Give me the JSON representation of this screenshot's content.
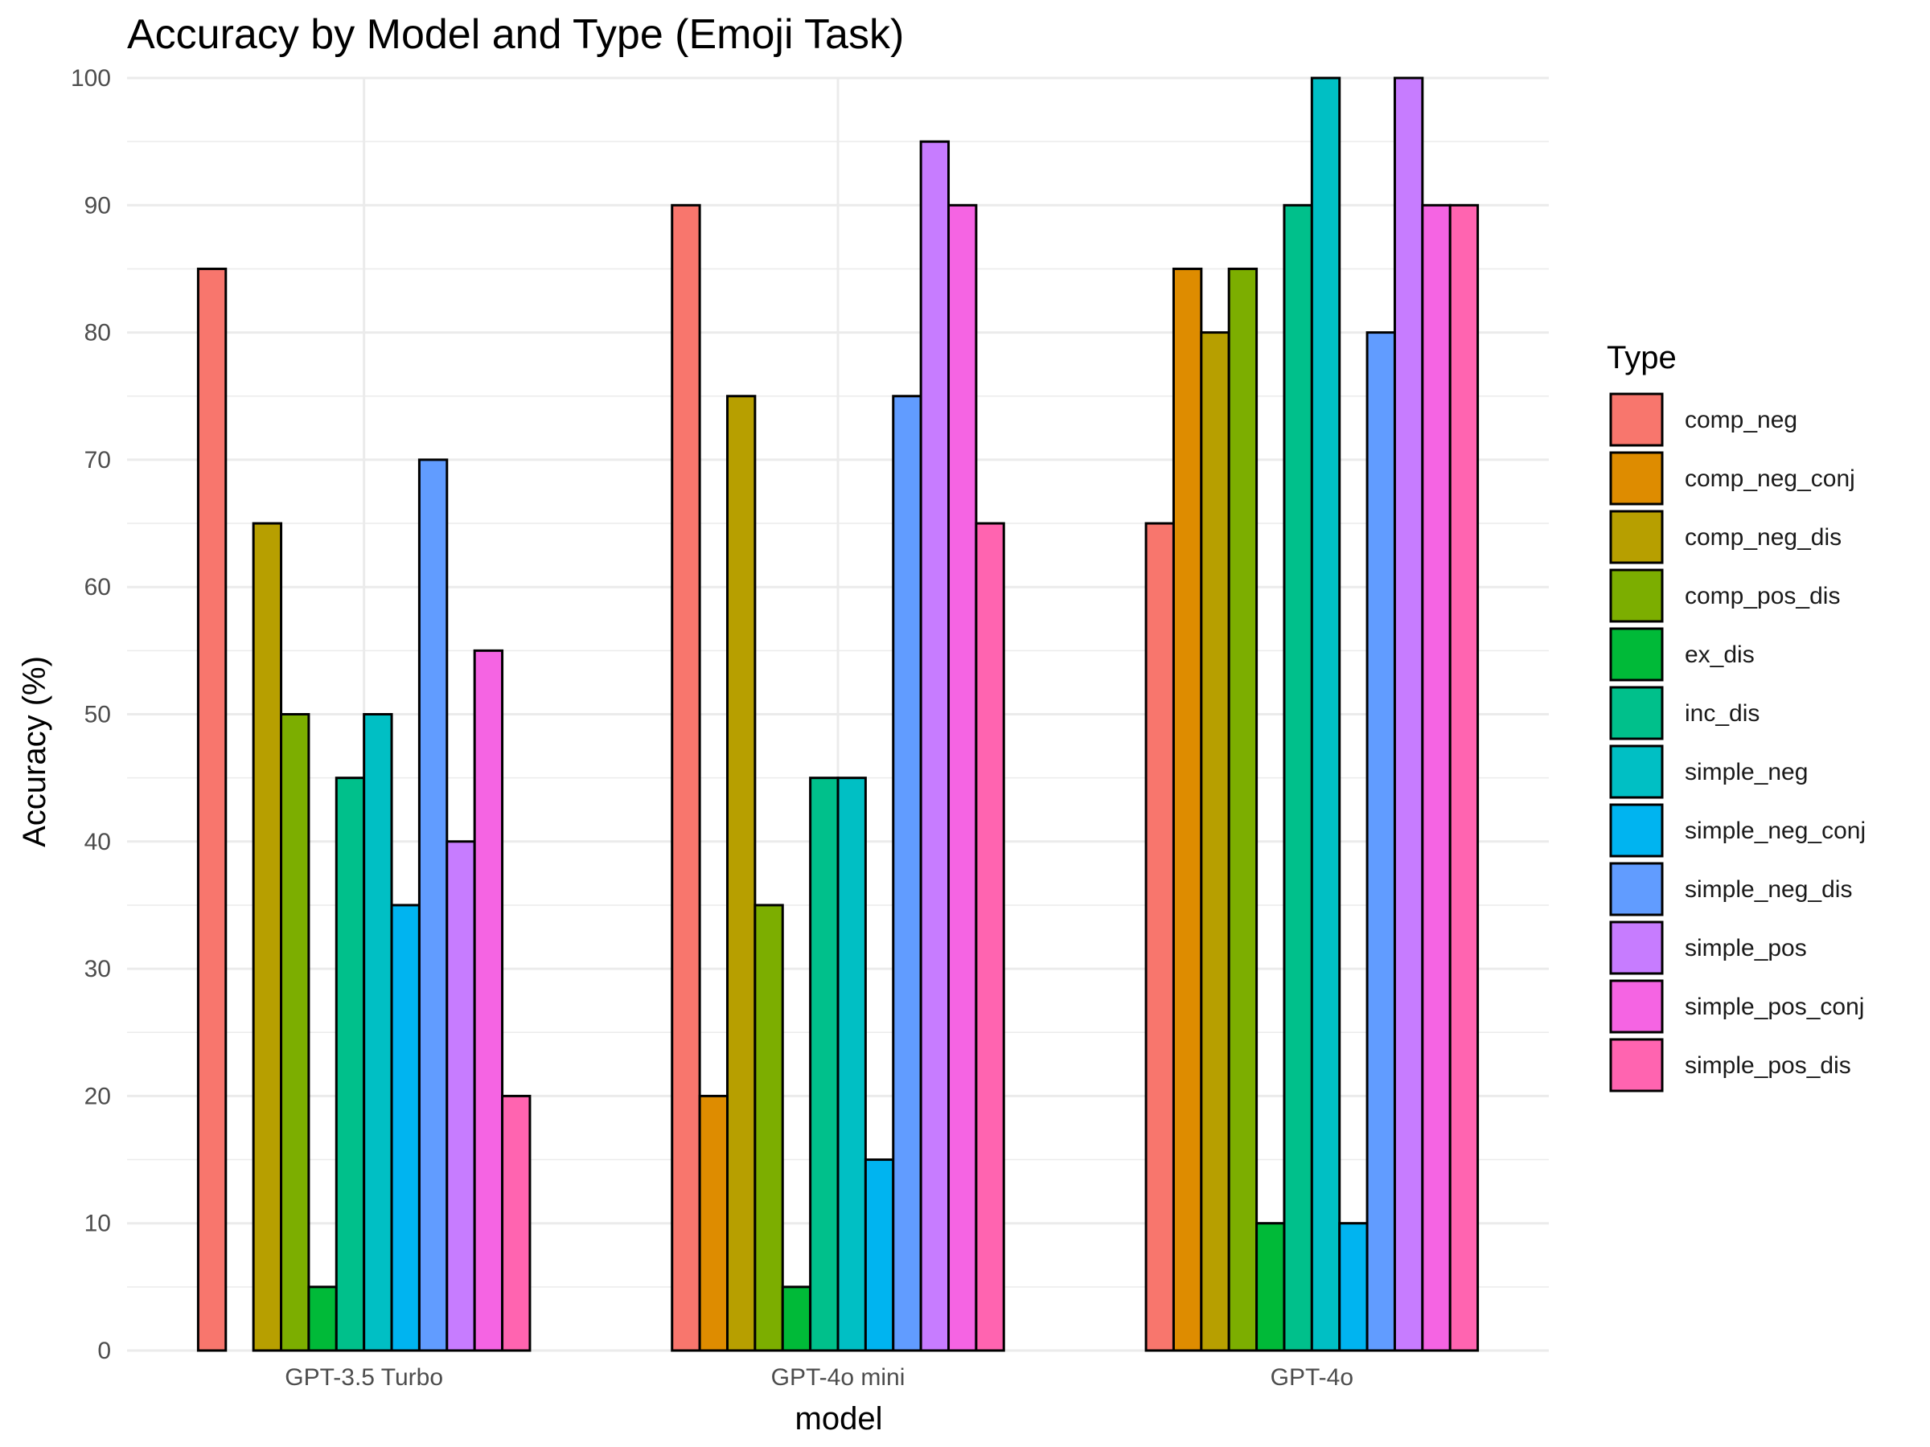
{
  "chart_data": {
    "type": "bar",
    "title": "Accuracy by Model and Type (Emoji Task)",
    "xlabel": "model",
    "ylabel": "Accuracy (%)",
    "ylim": [
      0,
      100
    ],
    "yticks": [
      0,
      10,
      20,
      30,
      40,
      50,
      60,
      70,
      80,
      90,
      100
    ],
    "grid": true,
    "legend_title": "Type",
    "legend_position": "right",
    "categories": [
      "GPT-3.5 Turbo",
      "GPT-4o mini",
      "GPT-4o"
    ],
    "series": [
      {
        "name": "comp_neg",
        "color": "#F8766D",
        "values": [
          85,
          90,
          65
        ]
      },
      {
        "name": "comp_neg_conj",
        "color": "#DE8C00",
        "values": [
          0,
          20,
          85
        ]
      },
      {
        "name": "comp_neg_dis",
        "color": "#B79F00",
        "values": [
          65,
          75,
          80
        ]
      },
      {
        "name": "comp_pos_dis",
        "color": "#7CAE00",
        "values": [
          50,
          35,
          85
        ]
      },
      {
        "name": "ex_dis",
        "color": "#00BA38",
        "values": [
          5,
          5,
          10
        ]
      },
      {
        "name": "inc_dis",
        "color": "#00C08B",
        "values": [
          45,
          45,
          90
        ]
      },
      {
        "name": "simple_neg",
        "color": "#00BFC4",
        "values": [
          50,
          45,
          100
        ]
      },
      {
        "name": "simple_neg_conj",
        "color": "#00B4F0",
        "values": [
          35,
          15,
          10
        ]
      },
      {
        "name": "simple_neg_dis",
        "color": "#619CFF",
        "values": [
          70,
          75,
          80
        ]
      },
      {
        "name": "simple_pos",
        "color": "#C77CFF",
        "values": [
          40,
          95,
          100
        ]
      },
      {
        "name": "simple_pos_conj",
        "color": "#F564E3",
        "values": [
          55,
          90,
          90
        ]
      },
      {
        "name": "simple_pos_dis",
        "color": "#FF64B0",
        "values": [
          20,
          65,
          90
        ]
      }
    ]
  }
}
